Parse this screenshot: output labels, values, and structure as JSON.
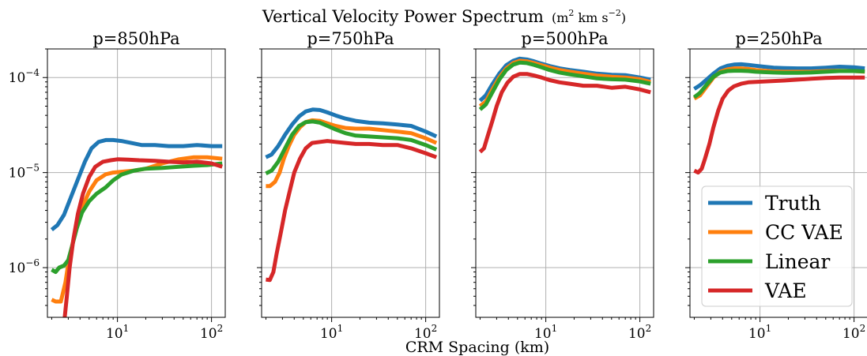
{
  "figure": {
    "title_main": "Vertical Velocity Power Spectrum",
    "title_units": "(m",
    "title_units_sup1": "2",
    "title_units_mid": " km s",
    "title_units_sup2": "−2",
    "title_units_end": ")",
    "xlabel": "CRM Spacing (km)"
  },
  "legend": {
    "placement": "lower-right of last panel",
    "entries": [
      {
        "label": "Truth",
        "color": "#1f77b4"
      },
      {
        "label": "CC VAE",
        "color": "#ff7f0e"
      },
      {
        "label": "Linear",
        "color": "#2ca02c"
      },
      {
        "label": "VAE",
        "color": "#d62728"
      }
    ]
  },
  "chart_data": [
    {
      "type": "line",
      "title": "p=850hPa",
      "xscale": "log",
      "yscale": "log",
      "xlim": [
        1.8,
        140
      ],
      "ylim": [
        3e-07,
        0.0002
      ],
      "grid": true,
      "xticks": [
        {
          "value": 10,
          "base": "10",
          "exp": "1"
        },
        {
          "value": 100,
          "base": "10",
          "exp": "2"
        }
      ],
      "yticks": [
        {
          "value": 1e-06,
          "base": "10",
          "exp": "−6"
        },
        {
          "value": 1e-05,
          "base": "10",
          "exp": "−5"
        },
        {
          "value": 0.0001,
          "base": "10",
          "exp": "−4"
        }
      ],
      "series": [
        {
          "name": "Truth",
          "color": "#1f77b4",
          "x": [
            2.0,
            2.3,
            2.7,
            3.2,
            3.8,
            4.5,
            5.3,
            6.3,
            7.5,
            9,
            11,
            14,
            18,
            25,
            35,
            50,
            70,
            100,
            130
          ],
          "y": [
            2.5e-06,
            2.8e-06,
            3.6e-06,
            5.5e-06,
            8.5e-06,
            1.3e-05,
            1.8e-05,
            2.1e-05,
            2.2e-05,
            2.2e-05,
            2.15e-05,
            2.05e-05,
            1.95e-05,
            1.95e-05,
            1.9e-05,
            1.9e-05,
            1.95e-05,
            1.9e-05,
            1.9e-05
          ]
        },
        {
          "name": "CC VAE",
          "color": "#ff7f0e",
          "x": [
            2.0,
            2.2,
            2.5,
            2.8,
            3.0,
            3.3,
            3.7,
            4.2,
            5.0,
            6.0,
            7.5,
            9,
            11,
            15,
            20,
            30,
            45,
            65,
            90,
            130
          ],
          "y": [
            4.6e-07,
            4.4e-07,
            4.4e-07,
            7e-07,
            1.1e-06,
            1.7e-06,
            2.8e-06,
            4.3e-06,
            6.3e-06,
            8.3e-06,
            9.6e-06,
            1e-05,
            1.02e-05,
            1.05e-05,
            1.1e-05,
            1.25e-05,
            1.38e-05,
            1.45e-05,
            1.45e-05,
            1.4e-05
          ]
        },
        {
          "name": "Linear",
          "color": "#2ca02c",
          "x": [
            2.0,
            2.2,
            2.4,
            2.7,
            3.0,
            3.3,
            3.7,
            4.2,
            5.0,
            6.0,
            7.5,
            9,
            11,
            15,
            20,
            30,
            45,
            65,
            90,
            130
          ],
          "y": [
            9.5e-07,
            9e-07,
            1e-06,
            1.05e-06,
            1.2e-06,
            1.7e-06,
            2.6e-06,
            3.8e-06,
            5e-06,
            6e-06,
            7e-06,
            8.3e-06,
            9.5e-06,
            1.05e-05,
            1.1e-05,
            1.12e-05,
            1.15e-05,
            1.18e-05,
            1.2e-05,
            1.25e-05
          ]
        },
        {
          "name": "VAE",
          "color": "#d62728",
          "x": [
            2.75,
            2.9,
            3.1,
            3.4,
            3.8,
            4.3,
            5.0,
            5.8,
            7.0,
            8.5,
            10,
            13,
            17,
            25,
            35,
            50,
            70,
            100,
            130
          ],
          "y": [
            3e-07,
            5e-07,
            1e-06,
            2e-06,
            3.7e-06,
            6e-06,
            9e-06,
            1.15e-05,
            1.3e-05,
            1.35e-05,
            1.38e-05,
            1.37e-05,
            1.35e-05,
            1.33e-05,
            1.3e-05,
            1.28e-05,
            1.3e-05,
            1.25e-05,
            1.15e-05
          ]
        }
      ]
    },
    {
      "type": "line",
      "title": "p=750hPa",
      "xscale": "log",
      "yscale": "log",
      "xlim": [
        1.8,
        140
      ],
      "ylim": [
        3e-07,
        0.0002
      ],
      "grid": true,
      "xticks": [
        {
          "value": 10,
          "base": "10",
          "exp": "1"
        },
        {
          "value": 100,
          "base": "10",
          "exp": "2"
        }
      ],
      "series": [
        {
          "name": "Truth",
          "color": "#1f77b4",
          "x": [
            2.0,
            2.3,
            2.7,
            3.2,
            3.8,
            4.5,
            5.3,
            6.3,
            7.5,
            9,
            11,
            14,
            18,
            25,
            35,
            50,
            70,
            100,
            130
          ],
          "y": [
            1.45e-05,
            1.55e-05,
            1.9e-05,
            2.5e-05,
            3.2e-05,
            3.9e-05,
            4.4e-05,
            4.6e-05,
            4.55e-05,
            4.3e-05,
            4e-05,
            3.7e-05,
            3.5e-05,
            3.35e-05,
            3.3e-05,
            3.2e-05,
            3.1e-05,
            2.7e-05,
            2.4e-05
          ]
        },
        {
          "name": "CC VAE",
          "color": "#ff7f0e",
          "x": [
            2.0,
            2.2,
            2.5,
            2.8,
            3.1,
            3.5,
            4.0,
            4.6,
            5.3,
            6.2,
            7.5,
            9,
            11,
            14,
            18,
            25,
            35,
            50,
            70,
            100,
            130
          ],
          "y": [
            7.2e-06,
            7.2e-06,
            8e-06,
            1e-05,
            1.4e-05,
            1.9e-05,
            2.5e-05,
            3e-05,
            3.4e-05,
            3.55e-05,
            3.5e-05,
            3.3e-05,
            3.1e-05,
            2.95e-05,
            2.9e-05,
            2.9e-05,
            2.8e-05,
            2.7e-05,
            2.6e-05,
            2.3e-05,
            2.05e-05
          ]
        },
        {
          "name": "Linear",
          "color": "#2ca02c",
          "x": [
            2.0,
            2.3,
            2.7,
            3.2,
            3.8,
            4.5,
            5.3,
            6.3,
            7.5,
            9,
            11,
            14,
            18,
            25,
            35,
            50,
            70,
            100,
            130
          ],
          "y": [
            9.8e-06,
            1.05e-05,
            1.3e-05,
            1.8e-05,
            2.5e-05,
            3.1e-05,
            3.4e-05,
            3.45e-05,
            3.35e-05,
            3.1e-05,
            2.85e-05,
            2.6e-05,
            2.45e-05,
            2.4e-05,
            2.35e-05,
            2.3e-05,
            2.2e-05,
            1.95e-05,
            1.75e-05
          ]
        },
        {
          "name": "VAE",
          "color": "#d62728",
          "x": [
            2.0,
            2.2,
            2.4,
            2.6,
            2.9,
            3.2,
            3.6,
            4.0,
            4.6,
            5.3,
            6.2,
            7.5,
            9,
            11,
            14,
            18,
            25,
            35,
            50,
            70,
            100,
            130
          ],
          "y": [
            7.5e-07,
            7.4e-07,
            9e-07,
            1.4e-06,
            2.4e-06,
            4e-06,
            6.5e-06,
            1e-05,
            1.4e-05,
            1.8e-05,
            2.05e-05,
            2.1e-05,
            2.15e-05,
            2.1e-05,
            2.05e-05,
            2e-05,
            2e-05,
            1.95e-05,
            1.95e-05,
            1.8e-05,
            1.6e-05,
            1.45e-05
          ]
        }
      ]
    },
    {
      "type": "line",
      "title": "p=500hPa",
      "xscale": "log",
      "yscale": "log",
      "xlim": [
        1.8,
        140
      ],
      "ylim": [
        3e-07,
        0.0002
      ],
      "grid": true,
      "xticks": [
        {
          "value": 10,
          "base": "10",
          "exp": "1"
        },
        {
          "value": 100,
          "base": "10",
          "exp": "2"
        }
      ],
      "series": [
        {
          "name": "Truth",
          "color": "#1f77b4",
          "x": [
            2.0,
            2.3,
            2.7,
            3.2,
            3.8,
            4.5,
            5.3,
            6.3,
            7.5,
            9,
            11,
            14,
            18,
            25,
            35,
            50,
            70,
            100,
            130
          ],
          "y": [
            5.7e-05,
            6.5e-05,
            8.5e-05,
            0.00011,
            0.000135,
            0.00015,
            0.000158,
            0.000155,
            0.000148,
            0.00014,
            0.000132,
            0.000125,
            0.00012,
            0.000115,
            0.00011,
            0.000107,
            0.000106,
            0.0001,
            9.5e-05
          ]
        },
        {
          "name": "CC VAE",
          "color": "#ff7f0e",
          "x": [
            2.0,
            2.3,
            2.7,
            3.2,
            3.8,
            4.5,
            5.3,
            6.3,
            7.5,
            9,
            11,
            14,
            18,
            25,
            35,
            50,
            70,
            100,
            130
          ],
          "y": [
            5e-05,
            5.6e-05,
            7.5e-05,
            0.0001,
            0.000125,
            0.000142,
            0.00015,
            0.000148,
            0.000142,
            0.000135,
            0.000127,
            0.00012,
            0.000115,
            0.00011,
            0.000105,
            0.000102,
            0.0001,
            9.6e-05,
            9e-05
          ]
        },
        {
          "name": "Linear",
          "color": "#2ca02c",
          "x": [
            2.0,
            2.3,
            2.7,
            3.2,
            3.8,
            4.5,
            5.3,
            6.3,
            7.5,
            9,
            11,
            14,
            18,
            25,
            35,
            50,
            70,
            100,
            130
          ],
          "y": [
            4.6e-05,
            5.2e-05,
            7e-05,
            9.5e-05,
            0.00012,
            0.000137,
            0.000144,
            0.000142,
            0.000136,
            0.000128,
            0.00012,
            0.000113,
            0.000108,
            0.000103,
            9.8e-05,
            9.6e-05,
            9.5e-05,
            9.1e-05,
            8.6e-05
          ]
        },
        {
          "name": "VAE",
          "color": "#d62728",
          "x": [
            2.0,
            2.2,
            2.4,
            2.7,
            3.0,
            3.4,
            3.9,
            4.5,
            5.3,
            6.3,
            7.5,
            9,
            11,
            14,
            18,
            25,
            35,
            50,
            70,
            100,
            130
          ],
          "y": [
            1.65e-05,
            1.8e-05,
            2.4e-05,
            3.5e-05,
            5e-05,
            7e-05,
            8.8e-05,
            0.000102,
            0.000109,
            0.000109,
            0.000105,
            0.0001,
            9.4e-05,
            8.9e-05,
            8.6e-05,
            8.2e-05,
            8.2e-05,
            7.8e-05,
            8e-05,
            7.5e-05,
            7e-05
          ]
        }
      ]
    },
    {
      "type": "line",
      "title": "p=250hPa",
      "xscale": "log",
      "yscale": "log",
      "xlim": [
        1.8,
        140
      ],
      "ylim": [
        3e-07,
        0.0002
      ],
      "grid": true,
      "xticks": [
        {
          "value": 10,
          "base": "10",
          "exp": "1"
        },
        {
          "value": 100,
          "base": "10",
          "exp": "2"
        }
      ],
      "series": [
        {
          "name": "Truth",
          "color": "#1f77b4",
          "x": [
            2.0,
            2.3,
            2.7,
            3.2,
            3.8,
            4.5,
            5.3,
            6.3,
            7.5,
            9,
            11,
            14,
            18,
            25,
            35,
            50,
            70,
            100,
            130
          ],
          "y": [
            7.6e-05,
            8.3e-05,
            9.5e-05,
            0.00011,
            0.000125,
            0.000133,
            0.000137,
            0.000138,
            0.000136,
            0.000133,
            0.00013,
            0.000127,
            0.000126,
            0.000125,
            0.000125,
            0.000127,
            0.00013,
            0.000128,
            0.000125
          ]
        },
        {
          "name": "CC VAE",
          "color": "#ff7f0e",
          "x": [
            2.0,
            2.3,
            2.7,
            3.2,
            3.8,
            4.5,
            5.3,
            6.3,
            7.5,
            9,
            11,
            14,
            18,
            25,
            35,
            50,
            70,
            100,
            130
          ],
          "y": [
            6e-05,
            6.5e-05,
            8e-05,
            0.0001,
            0.000115,
            0.000122,
            0.000125,
            0.000125,
            0.000123,
            0.00012,
            0.000118,
            0.000116,
            0.000115,
            0.000115,
            0.000115,
            0.000117,
            0.000118,
            0.000117,
            0.000115
          ]
        },
        {
          "name": "Linear",
          "color": "#2ca02c",
          "x": [
            2.0,
            2.3,
            2.7,
            3.2,
            3.8,
            4.5,
            5.3,
            6.3,
            7.5,
            9,
            11,
            14,
            18,
            25,
            35,
            50,
            70,
            100,
            130
          ],
          "y": [
            6.2e-05,
            6.9e-05,
            8.4e-05,
            0.000102,
            0.000113,
            0.000117,
            0.000118,
            0.000118,
            0.000117,
            0.000115,
            0.000114,
            0.000113,
            0.000112,
            0.000112,
            0.000113,
            0.000115,
            0.000117,
            0.000117,
            0.000116
          ]
        },
        {
          "name": "VAE",
          "color": "#d62728",
          "x": [
            2.0,
            2.2,
            2.4,
            2.6,
            2.9,
            3.2,
            3.6,
            4.0,
            4.6,
            5.3,
            6.3,
            7.5,
            9,
            11,
            14,
            18,
            25,
            35,
            50,
            70,
            100,
            130
          ],
          "y": [
            1.05e-05,
            1e-05,
            1.1e-05,
            1.4e-05,
            2e-05,
            3e-05,
            4.5e-05,
            6e-05,
            7.3e-05,
            8.1e-05,
            8.6e-05,
            8.9e-05,
            9e-05,
            9.1e-05,
            9.2e-05,
            9.3e-05,
            9.5e-05,
            9.7e-05,
            9.9e-05,
            0.0001,
            0.0001,
            0.0001
          ]
        }
      ]
    }
  ]
}
